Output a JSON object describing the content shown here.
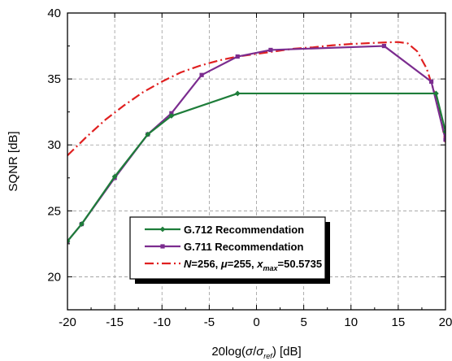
{
  "chart_data": {
    "type": "line",
    "title": "",
    "xlabel": "20log(σ/σref) [dB]",
    "xlabel_parts": {
      "prefix": "20log(",
      "sigma1": "σ",
      "slash": "/",
      "sigma2": "σ",
      "subscript": "ref",
      "suffix": ") [dB]"
    },
    "ylabel": "SQNR [dB]",
    "xlim": [
      -20,
      20
    ],
    "ylim": [
      17.5,
      40
    ],
    "x_ticks": [
      -20,
      -15,
      -10,
      -5,
      0,
      5,
      10,
      15,
      20
    ],
    "y_ticks": [
      20,
      25,
      30,
      35,
      40
    ],
    "x_tick_labels": [
      "-20",
      "-15",
      "-10",
      "-5",
      "0",
      "5",
      "10",
      "15",
      "20"
    ],
    "y_tick_labels": [
      "20",
      "25",
      "30",
      "35",
      "40"
    ],
    "grid": true,
    "grid_style": "dashed",
    "legend_position": "bottom-center",
    "series": [
      {
        "name": "G.712 Recommendation",
        "color": "#1e7d3a",
        "line_style": "solid",
        "marker": "diamond",
        "x": [
          -20,
          -18.5,
          -15,
          -11.5,
          -9,
          -2,
          19,
          20
        ],
        "y": [
          22.7,
          24.0,
          27.6,
          30.8,
          32.2,
          33.9,
          33.9,
          31.0
        ]
      },
      {
        "name": "G.711 Recommendation",
        "color": "#7b2c8f",
        "line_style": "solid",
        "marker": "square",
        "x": [
          -20,
          -18.5,
          -15,
          -11.5,
          -9,
          -5.8,
          -2,
          1.5,
          13.5,
          18.5,
          20
        ],
        "y": [
          22.7,
          24.0,
          27.5,
          30.8,
          32.4,
          35.3,
          36.7,
          37.2,
          37.5,
          34.8,
          30.4
        ]
      },
      {
        "name_parts": {
          "n_var": "N",
          "n_text": "=256, ",
          "mu_var": "μ",
          "mu_text": "=255, ",
          "x_var": "x",
          "x_sub": "max",
          "x_text": "=50.5735"
        },
        "color": "#e02020",
        "line_style": "dashdot",
        "marker": "none",
        "x": [
          -20,
          -18,
          -16,
          -14,
          -12,
          -10,
          -8,
          -6,
          -4,
          -2,
          0,
          2,
          4,
          6,
          8,
          10,
          12,
          14,
          15,
          16,
          17,
          18,
          19,
          19.5,
          20
        ],
        "y": [
          29.2,
          30.6,
          31.9,
          33.0,
          34.0,
          34.8,
          35.5,
          36.0,
          36.4,
          36.7,
          36.9,
          37.1,
          37.3,
          37.4,
          37.55,
          37.65,
          37.72,
          37.78,
          37.8,
          37.7,
          37.1,
          35.8,
          33.6,
          32.0,
          30.2
        ]
      }
    ]
  }
}
